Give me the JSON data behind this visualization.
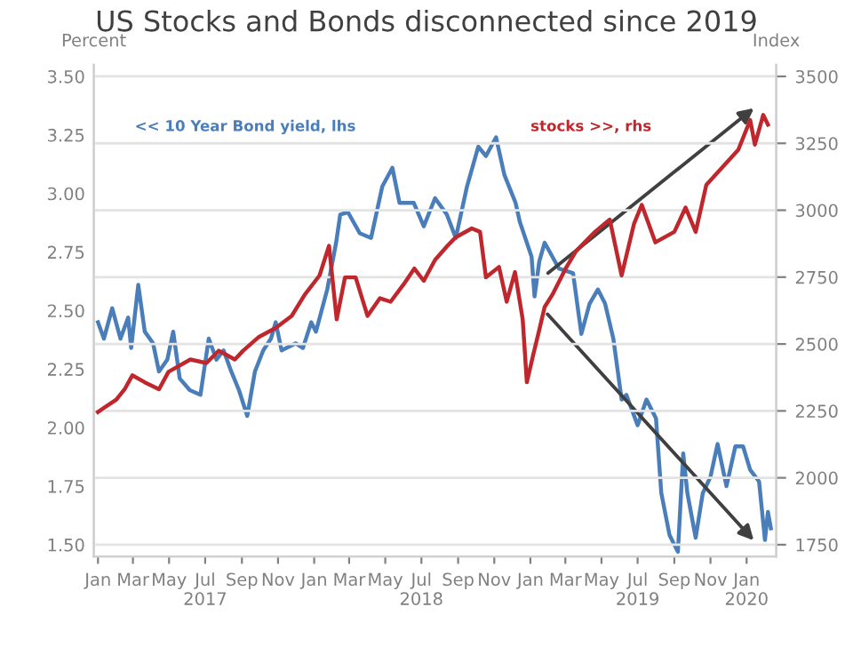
{
  "chart_data": {
    "type": "line",
    "title": "US Stocks and Bonds disconnected since 2019",
    "ylabel": "Percent",
    "y2label": "Index",
    "xlim": [
      "2016-12-25",
      "2020-02-20"
    ],
    "xticks": [
      {
        "value": "2017-01-01",
        "label": "Jan"
      },
      {
        "value": "2017-03-01",
        "label": "Mar"
      },
      {
        "value": "2017-05-01",
        "label": "May"
      },
      {
        "value": "2017-07-01",
        "label": "Jul\n2017"
      },
      {
        "value": "2017-09-01",
        "label": "Sep"
      },
      {
        "value": "2017-11-01",
        "label": "Nov"
      },
      {
        "value": "2018-01-01",
        "label": "Jan"
      },
      {
        "value": "2018-03-01",
        "label": "Mar"
      },
      {
        "value": "2018-05-01",
        "label": "May"
      },
      {
        "value": "2018-07-01",
        "label": "Jul\n2018"
      },
      {
        "value": "2018-09-01",
        "label": "Sep"
      },
      {
        "value": "2018-11-01",
        "label": "Nov"
      },
      {
        "value": "2019-01-01",
        "label": "Jan"
      },
      {
        "value": "2019-03-01",
        "label": "Mar"
      },
      {
        "value": "2019-05-01",
        "label": "May"
      },
      {
        "value": "2019-07-01",
        "label": "Jul\n2019"
      },
      {
        "value": "2019-09-01",
        "label": "Sep"
      },
      {
        "value": "2019-11-01",
        "label": "Nov"
      },
      {
        "value": "2020-01-01",
        "label": "Jan\n2020"
      }
    ],
    "ylim": [
      1.45,
      3.55
    ],
    "yticks": [
      {
        "value": 1.5,
        "label": "1.50"
      },
      {
        "value": 1.75,
        "label": "1.75"
      },
      {
        "value": 2.0,
        "label": "2.00"
      },
      {
        "value": 2.25,
        "label": "2.25"
      },
      {
        "value": 2.5,
        "label": "2.50"
      },
      {
        "value": 2.75,
        "label": "2.75"
      },
      {
        "value": 3.0,
        "label": "3.00"
      },
      {
        "value": 3.25,
        "label": "3.25"
      },
      {
        "value": 3.5,
        "label": "3.50"
      }
    ],
    "y2lim": [
      1706.25,
      3543.75
    ],
    "y2ticks": [
      1750,
      2000,
      2250,
      2500,
      2750,
      3000,
      3250,
      3500
    ],
    "grid": "y2",
    "legend": false,
    "series": [
      {
        "name": "<< 10 Year Bond yield, lhs",
        "color": "#4a7ebb",
        "axis": "y",
        "x": [
          "2017-01-01",
          "2017-01-11",
          "2017-01-25",
          "2017-02-08",
          "2017-02-21",
          "2017-02-26",
          "2017-03-10",
          "2017-03-21",
          "2017-04-04",
          "2017-04-14",
          "2017-04-28",
          "2017-05-08",
          "2017-05-19",
          "2017-06-05",
          "2017-06-23",
          "2017-07-07",
          "2017-07-20",
          "2017-08-01",
          "2017-08-14",
          "2017-08-27",
          "2017-09-10",
          "2017-09-23",
          "2017-10-07",
          "2017-10-20",
          "2017-10-28",
          "2017-11-07",
          "2017-12-01",
          "2017-12-13",
          "2017-12-27",
          "2018-01-04",
          "2018-01-23",
          "2018-02-07",
          "2018-02-14",
          "2018-02-27",
          "2018-03-19",
          "2018-04-07",
          "2018-04-26",
          "2018-05-13",
          "2018-05-25",
          "2018-06-18",
          "2018-07-05",
          "2018-07-24",
          "2018-08-13",
          "2018-08-28",
          "2018-09-16",
          "2018-10-05",
          "2018-10-18",
          "2018-11-04",
          "2018-11-18",
          "2018-12-07",
          "2018-12-14",
          "2019-01-03",
          "2019-01-08",
          "2019-01-16",
          "2019-01-25",
          "2019-02-18",
          "2019-03-14",
          "2019-03-28",
          "2019-04-11",
          "2019-04-25",
          "2019-05-07",
          "2019-05-21",
          "2019-06-04",
          "2019-06-12",
          "2019-07-01",
          "2019-07-16",
          "2019-08-01",
          "2019-08-10",
          "2019-08-24",
          "2019-09-07",
          "2019-09-16",
          "2019-09-23",
          "2019-10-07",
          "2019-10-19",
          "2019-11-01",
          "2019-11-13",
          "2019-11-28",
          "2019-12-13",
          "2019-12-26",
          "2020-01-07",
          "2020-01-22",
          "2020-02-01",
          "2020-02-06",
          "2020-02-11"
        ],
        "values": [
          2.45,
          2.38,
          2.51,
          2.38,
          2.47,
          2.34,
          2.61,
          2.41,
          2.36,
          2.24,
          2.29,
          2.41,
          2.21,
          2.16,
          2.14,
          2.38,
          2.29,
          2.33,
          2.24,
          2.16,
          2.05,
          2.24,
          2.33,
          2.38,
          2.45,
          2.33,
          2.36,
          2.34,
          2.45,
          2.41,
          2.59,
          2.79,
          2.91,
          2.92,
          2.83,
          2.81,
          3.03,
          3.11,
          2.96,
          2.96,
          2.86,
          2.98,
          2.91,
          2.81,
          3.03,
          3.2,
          3.16,
          3.24,
          3.08,
          2.96,
          2.88,
          2.73,
          2.56,
          2.71,
          2.79,
          2.68,
          2.66,
          2.4,
          2.53,
          2.59,
          2.53,
          2.38,
          2.12,
          2.14,
          2.01,
          2.12,
          2.04,
          1.72,
          1.54,
          1.47,
          1.89,
          1.72,
          1.53,
          1.72,
          1.79,
          1.93,
          1.75,
          1.92,
          1.92,
          1.82,
          1.77,
          1.52,
          1.64,
          1.57
        ]
      },
      {
        "name": "stocks >>, rhs",
        "color": "#c0272d",
        "axis": "y2",
        "x": [
          "2017-01-01",
          "2017-01-14",
          "2017-02-01",
          "2017-02-15",
          "2017-02-28",
          "2017-03-21",
          "2017-04-14",
          "2017-04-30",
          "2017-06-06",
          "2017-07-03",
          "2017-07-24",
          "2017-08-20",
          "2017-09-03",
          "2017-09-30",
          "2017-10-28",
          "2017-11-24",
          "2017-12-16",
          "2018-01-10",
          "2018-01-26",
          "2018-02-08",
          "2018-02-22",
          "2018-03-12",
          "2018-04-01",
          "2018-04-22",
          "2018-05-10",
          "2018-06-01",
          "2018-06-19",
          "2018-07-05",
          "2018-07-24",
          "2018-08-14",
          "2018-08-28",
          "2018-09-24",
          "2018-10-08",
          "2018-10-18",
          "2018-11-09",
          "2018-11-22",
          "2018-12-06",
          "2018-12-19",
          "2018-12-26",
          "2019-01-06",
          "2019-01-16",
          "2019-01-25",
          "2019-02-07",
          "2019-03-03",
          "2019-03-19",
          "2019-04-20",
          "2019-05-15",
          "2019-06-04",
          "2019-06-25",
          "2019-07-08",
          "2019-07-31",
          "2019-09-01",
          "2019-09-20",
          "2019-10-07",
          "2019-10-25",
          "2019-11-21",
          "2019-12-18",
          "2020-01-07",
          "2020-01-15",
          "2020-01-29",
          "2020-02-06"
        ],
        "values": [
          2246,
          2266,
          2292,
          2331,
          2383,
          2357,
          2331,
          2396,
          2442,
          2429,
          2475,
          2442,
          2475,
          2527,
          2560,
          2605,
          2684,
          2756,
          2867,
          2592,
          2749,
          2749,
          2605,
          2671,
          2658,
          2723,
          2782,
          2736,
          2814,
          2867,
          2899,
          2932,
          2919,
          2749,
          2788,
          2658,
          2769,
          2592,
          2357,
          2462,
          2553,
          2638,
          2684,
          2788,
          2847,
          2919,
          2965,
          2756,
          2950,
          3020,
          2880,
          2919,
          3010,
          2919,
          3095,
          3160,
          3226,
          3337,
          3245,
          3356,
          3320
        ]
      }
    ]
  }
}
